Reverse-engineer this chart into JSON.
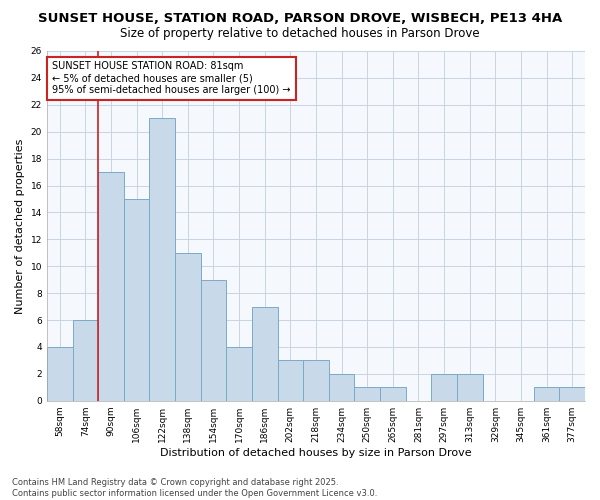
{
  "title": "SUNSET HOUSE, STATION ROAD, PARSON DROVE, WISBECH, PE13 4HA",
  "subtitle": "Size of property relative to detached houses in Parson Drove",
  "xlabel": "Distribution of detached houses by size in Parson Drove",
  "ylabel": "Number of detached properties",
  "categories": [
    "58sqm",
    "74sqm",
    "90sqm",
    "106sqm",
    "122sqm",
    "138sqm",
    "154sqm",
    "170sqm",
    "186sqm",
    "202sqm",
    "218sqm",
    "234sqm",
    "250sqm",
    "265sqm",
    "281sqm",
    "297sqm",
    "313sqm",
    "329sqm",
    "345sqm",
    "361sqm",
    "377sqm"
  ],
  "values": [
    4,
    6,
    17,
    15,
    21,
    11,
    9,
    4,
    7,
    3,
    3,
    2,
    1,
    1,
    0,
    2,
    2,
    0,
    0,
    1,
    1
  ],
  "bar_color": "#c8daea",
  "bar_edge_color": "#7aaac8",
  "grid_color": "#c8d4e0",
  "bg_color": "#ffffff",
  "plot_bg_color": "#f5f8fc",
  "red_line_x": 1.5,
  "annotation_line1": "SUNSET HOUSE STATION ROAD: 81sqm",
  "annotation_line2": "← 5% of detached houses are smaller (5)",
  "annotation_line3": "95% of semi-detached houses are larger (100) →",
  "annotation_box_color": "#ffffff",
  "annotation_edge_color": "#cc2222",
  "ylim": [
    0,
    26
  ],
  "yticks": [
    0,
    2,
    4,
    6,
    8,
    10,
    12,
    14,
    16,
    18,
    20,
    22,
    24,
    26
  ],
  "footer_line1": "Contains HM Land Registry data © Crown copyright and database right 2025.",
  "footer_line2": "Contains public sector information licensed under the Open Government Licence v3.0.",
  "title_fontsize": 9.5,
  "subtitle_fontsize": 8.5,
  "axis_label_fontsize": 8,
  "tick_fontsize": 6.5,
  "annotation_fontsize": 7,
  "footer_fontsize": 6
}
